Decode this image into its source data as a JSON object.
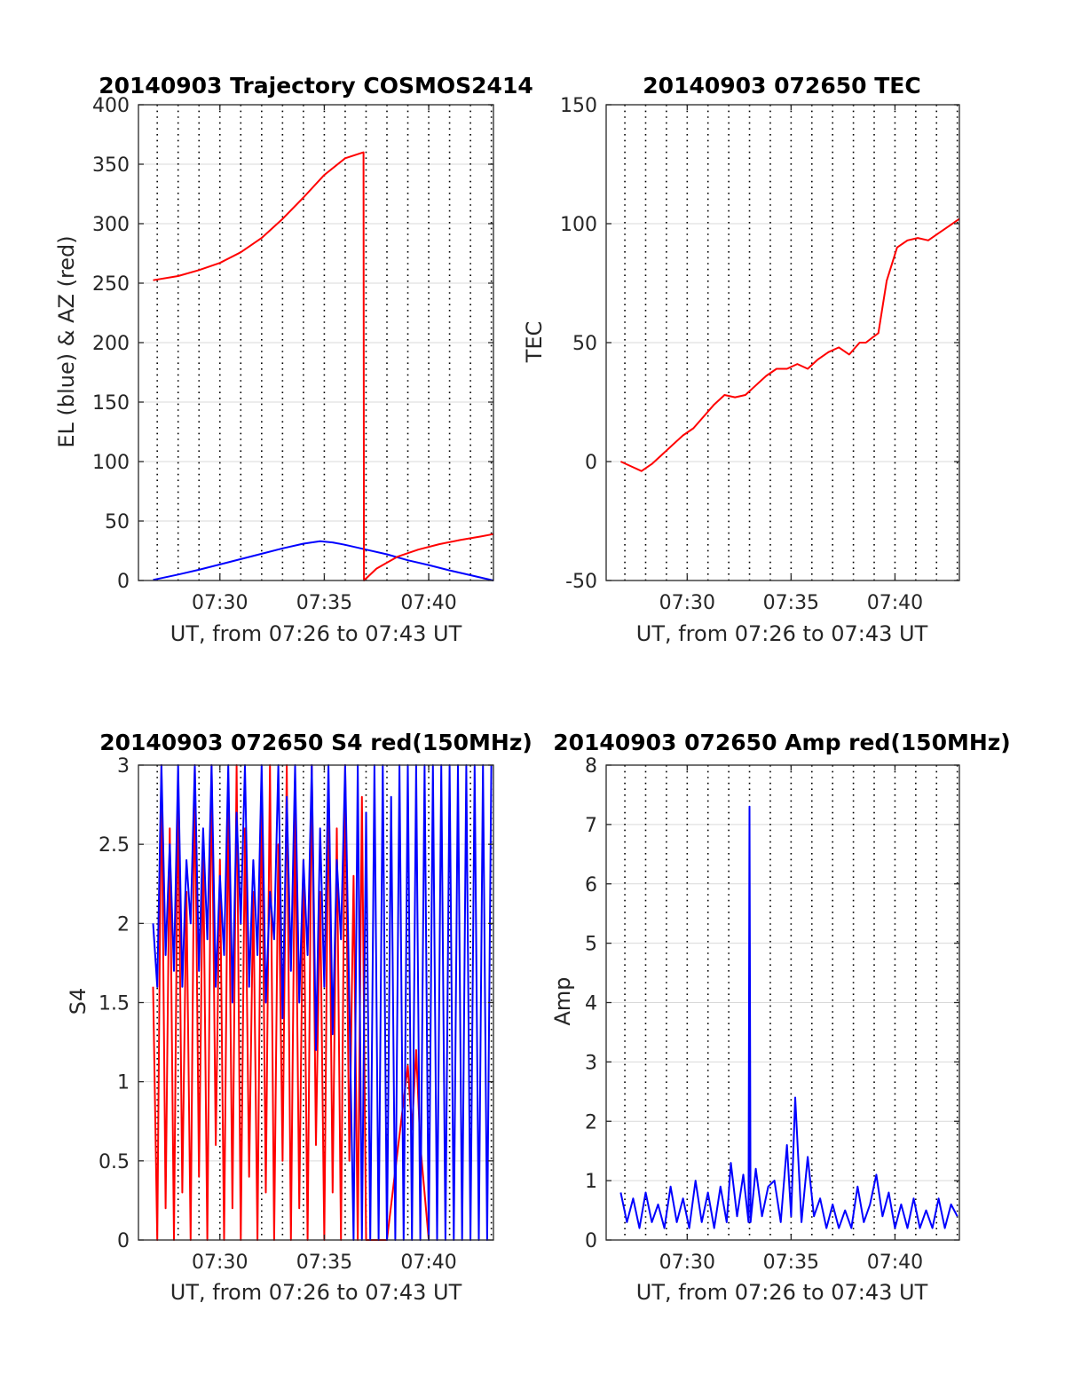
{
  "figure": {
    "colors": {
      "el": "#0000ff",
      "az": "#ff0000",
      "tec": "#ff0000",
      "s4_red": "#ff0000",
      "s4_blue": "#0000ff",
      "amp": "#0000ff",
      "grid": "#d9d9d9",
      "axis": "#262626"
    }
  },
  "chart_data": [
    {
      "id": "trajectory",
      "type": "line",
      "title": "20140903 Trajectory COSMOS2414",
      "xlabel": "UT, from 07:26 to 07:43 UT",
      "ylabel": "EL (blue) & AZ (red)",
      "x_unit": "minutes after 07:00 UT",
      "xlim": [
        26.1,
        43.1
      ],
      "ylim": [
        0,
        400
      ],
      "xticks": [
        30,
        35,
        40
      ],
      "xtick_labels": [
        "07:30",
        "07:35",
        "07:40"
      ],
      "yticks": [
        0,
        50,
        100,
        150,
        200,
        250,
        300,
        350,
        400
      ],
      "ytick_labels": [
        "0",
        "50",
        "100",
        "150",
        "200",
        "250",
        "300",
        "350",
        "400"
      ],
      "series": [
        {
          "name": "EL (blue)",
          "color": "#0000ff",
          "x": [
            26.8,
            28,
            29,
            30,
            31,
            32,
            33,
            34,
            34.8,
            35.4,
            36,
            37,
            38,
            39,
            40,
            41,
            42,
            43.1
          ],
          "y": [
            0.5,
            5,
            9,
            13.5,
            18,
            22.5,
            27,
            31,
            33,
            32,
            30,
            26,
            22,
            17,
            13,
            8.5,
            4.5,
            0
          ]
        },
        {
          "name": "AZ (red)",
          "color": "#ff0000",
          "x": [
            26.8,
            28,
            29,
            30,
            31,
            32,
            33,
            34,
            35,
            36,
            36.88,
            36.9,
            37.5,
            38.5,
            39.5,
            40.5,
            41.5,
            42.5,
            43.1
          ],
          "y": [
            252.5,
            256,
            261,
            267,
            276,
            288,
            304,
            322,
            341,
            355,
            360,
            0,
            10,
            20,
            26,
            30.5,
            34,
            37,
            39
          ]
        }
      ]
    },
    {
      "id": "tec",
      "type": "line",
      "title": "20140903 072650 TEC",
      "xlabel": "UT, from 07:26 to 07:43 UT",
      "ylabel": "TEC",
      "x_unit": "minutes after 07:00 UT",
      "xlim": [
        26.1,
        43.1
      ],
      "ylim": [
        -50,
        150
      ],
      "xticks": [
        30,
        35,
        40
      ],
      "xtick_labels": [
        "07:30",
        "07:35",
        "07:40"
      ],
      "yticks": [
        -50,
        0,
        50,
        100,
        150
      ],
      "ytick_labels": [
        "-50",
        "0",
        "50",
        "100",
        "150"
      ],
      "series": [
        {
          "name": "TEC",
          "color": "#ff0000",
          "x": [
            26.8,
            27.3,
            27.8,
            28.3,
            28.8,
            29.3,
            29.8,
            30.3,
            30.8,
            31.3,
            31.8,
            32.3,
            32.8,
            33.3,
            33.8,
            34.3,
            34.8,
            35.3,
            35.8,
            36.3,
            36.8,
            37.3,
            37.8,
            38.3,
            38.6,
            38.9,
            39.2,
            39.6,
            40.1,
            40.6,
            41.1,
            41.6,
            42.1,
            42.6,
            43.1
          ],
          "y": [
            0,
            -2,
            -4,
            -1,
            3,
            7,
            11,
            14,
            19,
            24,
            28,
            27,
            28,
            32,
            36,
            39,
            39,
            41,
            39,
            43,
            46,
            48,
            45,
            50,
            50,
            52,
            54,
            76,
            90,
            93,
            94,
            93,
            96,
            99,
            102
          ]
        }
      ]
    },
    {
      "id": "s4",
      "type": "line",
      "title": "20140903 072650 S4 red(150MHz)",
      "xlabel": "UT, from 07:26 to 07:43 UT",
      "ylabel": "S4",
      "x_unit": "minutes after 07:00 UT",
      "xlim": [
        26.1,
        43.1
      ],
      "ylim": [
        0,
        3
      ],
      "xticks": [
        30,
        35,
        40
      ],
      "xtick_labels": [
        "07:30",
        "07:35",
        "07:40"
      ],
      "yticks": [
        0,
        0.5,
        1,
        1.5,
        2,
        2.5,
        3
      ],
      "ytick_labels": [
        "0",
        "0.5",
        "1",
        "1.5",
        "2",
        "2.5",
        "3"
      ],
      "series": [
        {
          "name": "S4 red",
          "color": "#ff0000",
          "x": [
            26.8,
            27.0,
            27.2,
            27.4,
            27.6,
            27.8,
            28.0,
            28.2,
            28.4,
            28.6,
            28.8,
            29.0,
            29.2,
            29.4,
            29.6,
            29.8,
            30.0,
            30.2,
            30.4,
            30.6,
            30.8,
            31.0,
            31.2,
            31.4,
            31.6,
            31.8,
            32.0,
            32.2,
            32.4,
            32.6,
            32.8,
            33.0,
            33.2,
            33.4,
            33.6,
            33.8,
            34.0,
            34.2,
            34.4,
            34.6,
            34.8,
            35.0,
            35.2,
            35.4,
            35.6,
            35.8,
            36.0,
            36.2,
            36.4,
            36.6,
            36.8,
            37.0,
            38.0,
            39.0,
            39.2,
            39.4,
            39.6,
            40.0
          ],
          "y": [
            1.6,
            0,
            3,
            0.2,
            2.6,
            0,
            2.9,
            0.3,
            2.2,
            0,
            3,
            0.4,
            2.5,
            0,
            3,
            0.6,
            2.4,
            0,
            2.8,
            0.2,
            3,
            0,
            2.6,
            0.4,
            2.2,
            0,
            2.9,
            0.3,
            3,
            0,
            2.5,
            0.5,
            3,
            0,
            2.7,
            0.2,
            2.4,
            0,
            3,
            0.6,
            2.2,
            0,
            2.9,
            0.3,
            2.6,
            0,
            3,
            0.5,
            2.3,
            0,
            2.8,
            0,
            0,
            1.1,
            0.7,
            1.2,
            0.6,
            0
          ]
        },
        {
          "name": "S4 blue",
          "color": "#0000ff",
          "x": [
            26.8,
            27.0,
            27.2,
            27.4,
            27.6,
            27.8,
            28.0,
            28.2,
            28.4,
            28.6,
            28.8,
            29.0,
            29.2,
            29.4,
            29.6,
            29.8,
            30.0,
            30.2,
            30.4,
            30.6,
            30.8,
            31.0,
            31.2,
            31.4,
            31.6,
            31.8,
            32.0,
            32.2,
            32.4,
            32.6,
            32.8,
            33.0,
            33.2,
            33.4,
            33.6,
            33.8,
            34.0,
            34.2,
            34.4,
            34.6,
            34.8,
            35.0,
            35.2,
            35.4,
            35.6,
            35.8,
            36.0,
            36.2,
            36.4,
            36.6,
            36.8,
            37.0,
            37.2,
            37.4,
            37.6,
            37.8,
            38.0,
            38.2,
            38.4,
            38.6,
            38.8,
            39.0,
            39.2,
            39.4,
            39.6,
            39.8,
            40.0,
            40.2,
            40.4,
            40.6,
            40.8,
            41.0,
            41.2,
            41.4,
            41.6,
            41.8,
            42.0,
            42.2,
            42.4,
            42.6,
            42.8,
            43.0
          ],
          "y": [
            2.0,
            1.6,
            3,
            1.8,
            2.5,
            1.7,
            3,
            1.6,
            2.4,
            2.0,
            3,
            1.7,
            2.6,
            1.9,
            3,
            1.6,
            2.3,
            1.8,
            3,
            1.5,
            2.7,
            2.0,
            3,
            1.6,
            2.4,
            1.8,
            3,
            1.5,
            2.2,
            1.9,
            3,
            1.4,
            2.8,
            1.7,
            3,
            1.5,
            2.4,
            1.8,
            3,
            1.2,
            2.6,
            1.6,
            3,
            1.3,
            2.4,
            1.9,
            3,
            1.5,
            0,
            3,
            0,
            2.7,
            0,
            3,
            0,
            3,
            0,
            2.8,
            0,
            3,
            0,
            3,
            0,
            3,
            0,
            3,
            0,
            3,
            0,
            3,
            0,
            3,
            0,
            3,
            0,
            3,
            0,
            3,
            0,
            3,
            0,
            3
          ]
        }
      ]
    },
    {
      "id": "amp",
      "type": "line",
      "title": "20140903 072650 Amp red(150MHz)",
      "xlabel": "UT, from 07:26 to 07:43 UT",
      "ylabel": "Amp",
      "x_unit": "minutes after 07:00 UT",
      "xlim": [
        26.1,
        43.1
      ],
      "ylim": [
        0,
        8
      ],
      "xticks": [
        30,
        35,
        40
      ],
      "xtick_labels": [
        "07:30",
        "07:35",
        "07:40"
      ],
      "yticks": [
        0,
        1,
        2,
        3,
        4,
        5,
        6,
        7,
        8
      ],
      "ytick_labels": [
        "0",
        "1",
        "2",
        "3",
        "4",
        "5",
        "6",
        "7",
        "8"
      ],
      "series": [
        {
          "name": "Amp",
          "color": "#0000ff",
          "x": [
            26.8,
            27.1,
            27.4,
            27.7,
            28.0,
            28.3,
            28.6,
            28.9,
            29.2,
            29.5,
            29.8,
            30.1,
            30.4,
            30.7,
            31.0,
            31.3,
            31.6,
            31.9,
            32.1,
            32.4,
            32.7,
            32.95,
            33.0,
            33.05,
            33.3,
            33.6,
            33.9,
            34.2,
            34.5,
            34.8,
            35.0,
            35.2,
            35.5,
            35.8,
            36.1,
            36.4,
            36.7,
            37.0,
            37.3,
            37.6,
            37.9,
            38.2,
            38.5,
            38.8,
            39.1,
            39.4,
            39.7,
            40.0,
            40.3,
            40.6,
            40.9,
            41.2,
            41.5,
            41.8,
            42.1,
            42.4,
            42.7,
            43.0
          ],
          "y": [
            0.8,
            0.3,
            0.7,
            0.2,
            0.8,
            0.3,
            0.6,
            0.2,
            0.9,
            0.3,
            0.7,
            0.2,
            1.0,
            0.3,
            0.8,
            0.2,
            0.9,
            0.3,
            1.3,
            0.4,
            1.1,
            0.3,
            7.3,
            0.3,
            1.2,
            0.4,
            0.9,
            1.0,
            0.3,
            1.6,
            0.4,
            2.4,
            0.3,
            1.4,
            0.4,
            0.7,
            0.2,
            0.6,
            0.2,
            0.5,
            0.2,
            0.9,
            0.3,
            0.6,
            1.1,
            0.4,
            0.8,
            0.2,
            0.6,
            0.2,
            0.7,
            0.2,
            0.5,
            0.2,
            0.7,
            0.2,
            0.6,
            0.4
          ]
        }
      ]
    }
  ]
}
